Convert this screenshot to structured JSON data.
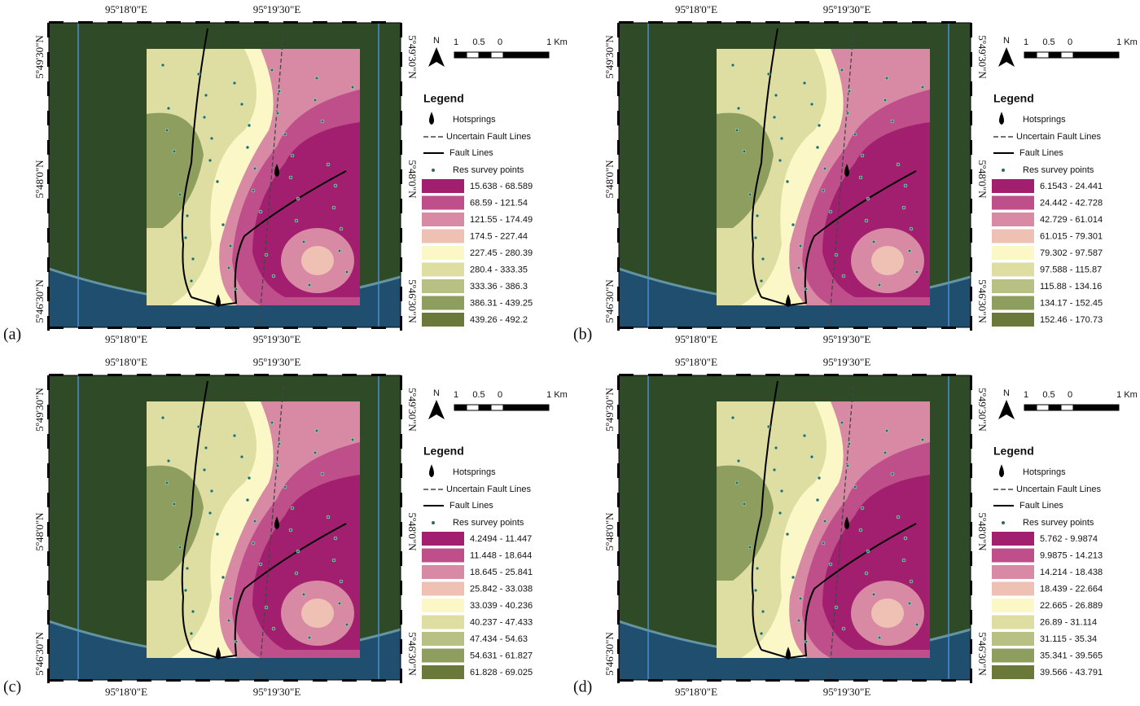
{
  "panels": [
    {
      "label": "(a)",
      "top_labels": [
        "95º18'0\"E",
        "95º19'30\"E"
      ],
      "bottom_labels": [
        "95º18'0\"E",
        "95º19'30\"E"
      ],
      "left_labels": [
        "5º49'30\"N",
        "5º48'0\"N",
        "5º46'30\"N"
      ],
      "right_labels": [
        "5º49'30\"N",
        "5º48'0\"N",
        "5º46'30\"N"
      ],
      "north": "N",
      "scale": [
        "1",
        "0.5",
        "0",
        "1 Km"
      ],
      "legend_title": "Legend",
      "legend_items": [
        "Hotsprings",
        "Uncertain Fault Lines",
        "Fault Lines",
        "Res survey points"
      ],
      "classes": [
        "15.638 - 68.589",
        "68.59 - 121.54",
        "121.55 - 174.49",
        "174.5 - 227.44",
        "227.45 - 280.39",
        "280.4 - 333.35",
        "333.36 - 386.3",
        "386.31 - 439.25",
        "439.26 - 492.2"
      ]
    },
    {
      "label": "(b)",
      "top_labels": [
        "95º18'0\"E",
        "95º19'30\"E"
      ],
      "bottom_labels": [
        "95º18'0\"E",
        "95º19'30\"E"
      ],
      "left_labels": [
        "5º49'30\"N",
        "5º48'0\"N",
        "5º46'30\"N"
      ],
      "right_labels": [
        "5º49'30\"N",
        "5º48'0\"N",
        "5º46'30\"N"
      ],
      "north": "N",
      "scale": [
        "1",
        "0.5",
        "0",
        "1 Km"
      ],
      "legend_title": "Legend",
      "legend_items": [
        "Hotsprings",
        "Uncertain Fault Lines",
        "Fault Lines",
        "Res survey points"
      ],
      "classes": [
        "6.1543 - 24.441",
        "24.442 - 42.728",
        "42.729 - 61.014",
        "61.015 - 79.301",
        "79.302 - 97.587",
        "97.588 - 115.87",
        "115.88 - 134.16",
        "134.17 - 152.45",
        "152.46 - 170.73"
      ]
    },
    {
      "label": "(c)",
      "top_labels": [
        "95º18'0\"E",
        "95º19'30\"E"
      ],
      "bottom_labels": [
        "95º18'0\"E",
        "95º19'30\"E"
      ],
      "left_labels": [
        "5º49'30\"N",
        "5º48'0\"N",
        "5º46'30\"N"
      ],
      "right_labels": [
        "5º49'30\"N",
        "5º48'0\"N",
        "5º46'30\"N"
      ],
      "north": "N",
      "scale": [
        "1",
        "0.5",
        "0",
        "1 Km"
      ],
      "legend_title": "Legend",
      "legend_items": [
        "Hotsprings",
        "Uncertain Fault Lines",
        "Fault Lines",
        "Res survey points"
      ],
      "classes": [
        "4.2494 - 11.447",
        "11.448 - 18.644",
        "18.645 - 25.841",
        "25.842 - 33.038",
        "33.039 - 40.236",
        "40.237 - 47.433",
        "47.434 - 54.63",
        "54.631 - 61.827",
        "61.828 - 69.025"
      ]
    },
    {
      "label": "(d)",
      "top_labels": [
        "95º18'0\"E",
        "95º19'30\"E"
      ],
      "bottom_labels": [
        "95º18'0\"E",
        "95º19'30\"E"
      ],
      "left_labels": [
        "5º49'30\"N",
        "5º48'0\"N",
        "5º46'30\"N"
      ],
      "right_labels": [
        "5º49'30\"N",
        "5º48'0\"N",
        "5º46'30\"N"
      ],
      "north": "N",
      "scale": [
        "1",
        "0.5",
        "0",
        "1 Km"
      ],
      "legend_title": "Legend",
      "legend_items": [
        "Hotsprings",
        "Uncertain Fault Lines",
        "Fault Lines",
        "Res survey points"
      ],
      "classes": [
        "5.762 - 9.9874",
        "9.9875 - 14.213",
        "14.214 - 18.438",
        "18.439 - 22.664",
        "22.665 - 26.889",
        "26.89 - 31.114",
        "31.115 - 35.34",
        "35.341 - 39.565",
        "39.566 - 43.791"
      ]
    }
  ]
}
